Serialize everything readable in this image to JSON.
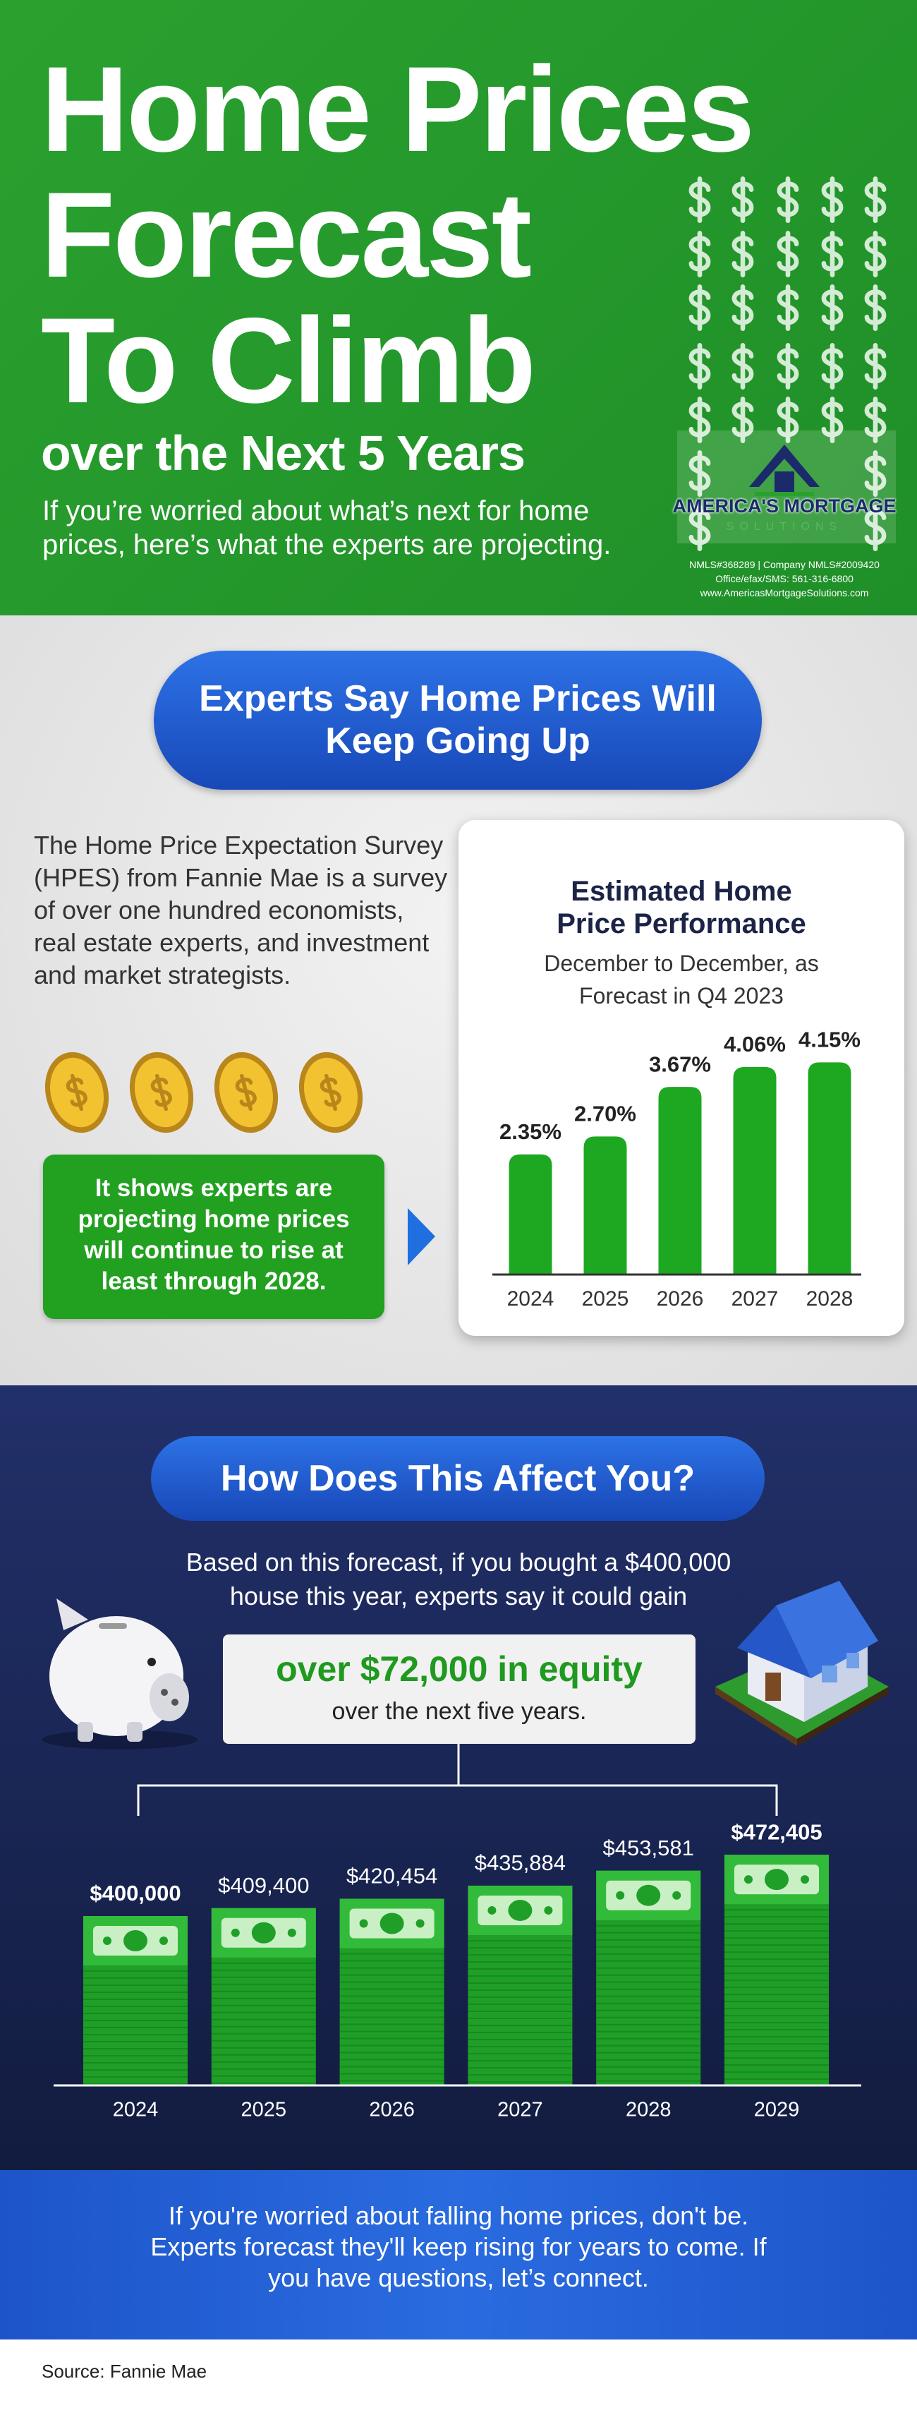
{
  "header": {
    "title": [
      "Home Prices",
      "Forecast",
      "To Climb"
    ],
    "subtitle": "over the Next 5 Years",
    "intro": "If you’re worried about what’s next for home prices, here’s what the experts are projecting."
  },
  "logo": {
    "name": "AMERICA'S MORTGAGE",
    "tagline": "SOLUTIONS",
    "nmls": "NMLS#368289 | Company NMLS#2009420",
    "phone": "Office/efax/SMS: 561-316-6800",
    "website": "www.AmericasMortgageSolutions.com"
  },
  "section1": {
    "heading": "Experts Say Home Prices Will Keep Going Up",
    "body": "The Home Price Expectation Survey (HPES) from Fannie Mae is a survey of over one hundred economists, real estate experts, and investment and market strategists.",
    "callout": "It shows experts are projecting home prices will continue to rise at least through 2028."
  },
  "section2": {
    "heading": "How Does This Affect You?",
    "intro": "Based on this forecast, if you bought a $400,000 house this year, experts say it could gain",
    "highlight": "over $72,000 in equity",
    "highlight_sub": "over the next five years."
  },
  "footer": {
    "text": "If you're worried about falling home prices, don't be. Experts forecast they'll keep rising for years to come. If you have questions, let’s connect.",
    "source": "Source: Fannie Mae"
  },
  "chart_data": [
    {
      "type": "bar",
      "title": "Estimated Home Price Performance",
      "subtitle": "December to December, as Forecast in Q4 2023",
      "categories": [
        "2024",
        "2025",
        "2026",
        "2027",
        "2028"
      ],
      "values": [
        2.35,
        2.7,
        3.67,
        4.06,
        4.15
      ],
      "value_labels": [
        "2.35%",
        "2.70%",
        "3.67%",
        "4.06%",
        "4.15%"
      ],
      "color": "#1ea821",
      "ylim": [
        0,
        4.5
      ]
    },
    {
      "type": "bar",
      "categories": [
        "2024",
        "2025",
        "2026",
        "2027",
        "2028",
        "2029"
      ],
      "values": [
        400000,
        409400,
        420454,
        435884,
        453581,
        472405
      ],
      "value_labels": [
        "$400,000",
        "$409,400",
        "$420,454",
        "$435,884",
        "$453,581",
        "$472,405"
      ],
      "color": "#1f9f27",
      "ylim": [
        200000,
        500000
      ]
    }
  ]
}
